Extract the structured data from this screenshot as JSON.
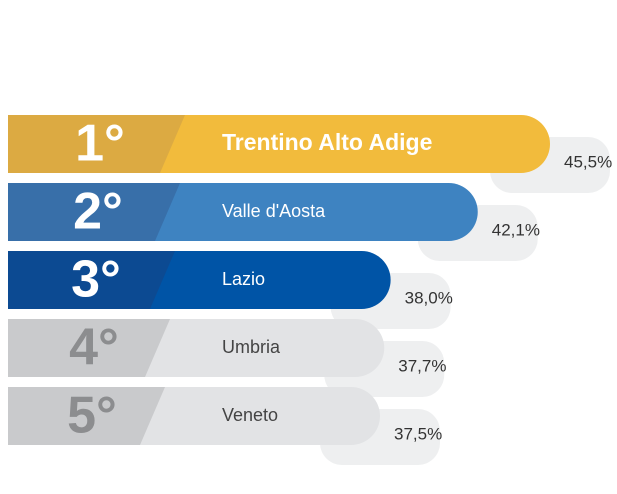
{
  "chart_data": {
    "type": "bar",
    "categories": [
      "Trentino Alto Adige",
      "Valle d'Aosta",
      "Lazio",
      "Umbria",
      "Veneto"
    ],
    "ranks": [
      "1°",
      "2°",
      "3°",
      "4°",
      "5°"
    ],
    "values": [
      45.5,
      42.1,
      38.0,
      37.7,
      37.5
    ],
    "value_labels": [
      "45,5%",
      "42,1%",
      "38,0%",
      "37,7%",
      "37,5%"
    ],
    "colors": [
      "#f2bb3c",
      "#3e83c1",
      "#0054a6",
      "#e2e3e5",
      "#e2e3e5"
    ],
    "rank_colors": [
      "#dcaa42",
      "#386fa9",
      "#0c4a92",
      "#c9cacc",
      "#c9cacc"
    ]
  }
}
